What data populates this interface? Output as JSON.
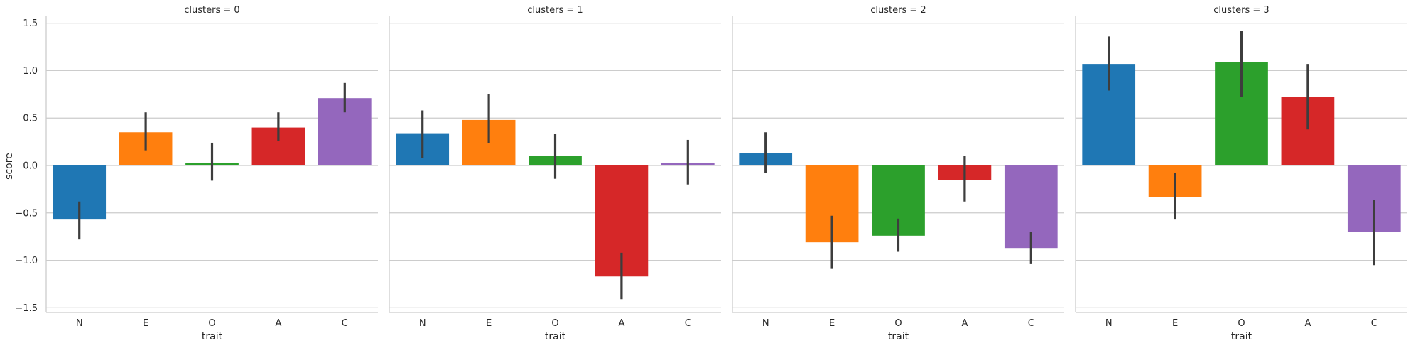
{
  "chart_data": {
    "type": "bar",
    "facet_variable": "clusters",
    "xlabel": "trait",
    "ylabel": "score",
    "ylim": [
      -1.55,
      1.58
    ],
    "yticks": [
      -1.5,
      -1.0,
      -0.5,
      0.0,
      0.5,
      1.0,
      1.5
    ],
    "ytick_labels": [
      "−1.5",
      "−1.0",
      "−0.5",
      "0.0",
      "0.5",
      "1.0",
      "1.5"
    ],
    "categories": [
      "N",
      "E",
      "O",
      "A",
      "C"
    ],
    "colors": [
      "#1f77b4",
      "#ff7f0e",
      "#2ca02c",
      "#d62728",
      "#9467bd"
    ],
    "grid": true,
    "panels": [
      {
        "title": "clusters = 0",
        "values": [
          -0.57,
          0.35,
          0.03,
          0.4,
          0.71
        ],
        "ci_low": [
          -0.78,
          0.16,
          -0.16,
          0.26,
          0.56
        ],
        "ci_high": [
          -0.38,
          0.56,
          0.24,
          0.56,
          0.87
        ]
      },
      {
        "title": "clusters = 1",
        "values": [
          0.34,
          0.48,
          0.1,
          -1.17,
          0.03
        ],
        "ci_low": [
          0.08,
          0.24,
          -0.14,
          -1.41,
          -0.2
        ],
        "ci_high": [
          0.58,
          0.75,
          0.33,
          -0.92,
          0.27
        ]
      },
      {
        "title": "clusters = 2",
        "values": [
          0.13,
          -0.81,
          -0.74,
          -0.15,
          -0.87
        ],
        "ci_low": [
          -0.08,
          -1.09,
          -0.91,
          -0.38,
          -1.04
        ],
        "ci_high": [
          0.35,
          -0.53,
          -0.56,
          0.1,
          -0.7
        ]
      },
      {
        "title": "clusters = 3",
        "values": [
          1.07,
          -0.33,
          1.09,
          0.72,
          -0.7
        ],
        "ci_low": [
          0.79,
          -0.57,
          0.72,
          0.38,
          -1.05
        ],
        "ci_high": [
          1.36,
          -0.08,
          1.42,
          1.07,
          -0.36
        ]
      }
    ]
  }
}
